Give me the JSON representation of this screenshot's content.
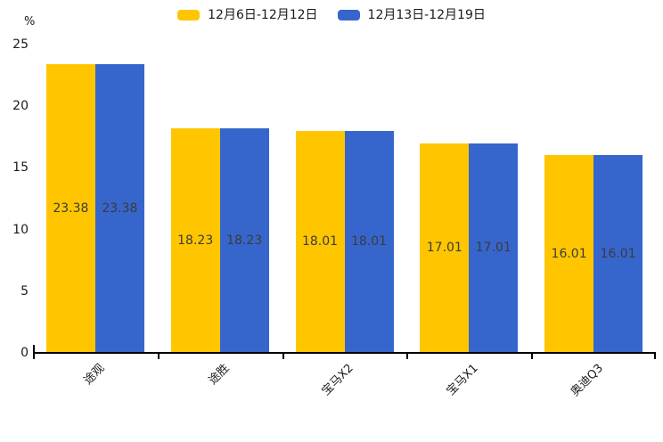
{
  "chart_data": {
    "type": "bar",
    "title": "",
    "xlabel": "",
    "ylabel": "%",
    "ylim": [
      0,
      25
    ],
    "yticks": [
      0,
      5,
      10,
      15,
      20,
      25
    ],
    "grid": false,
    "legend_position": "top-center",
    "categories": [
      "途观",
      "途胜",
      "宝马X2",
      "宝马X1",
      "奥迪Q3"
    ],
    "series": [
      {
        "name": "12月6日-12月12日",
        "color": "#FFC600",
        "values": [
          23.38,
          18.23,
          18.01,
          17.01,
          16.01
        ]
      },
      {
        "name": "12月13日-12月19日",
        "color": "#3666CC",
        "values": [
          23.38,
          18.23,
          18.01,
          17.01,
          16.01
        ]
      }
    ],
    "value_labels_shown": true,
    "value_label_color": "#3b3b3b",
    "axis_color": "#000000"
  }
}
